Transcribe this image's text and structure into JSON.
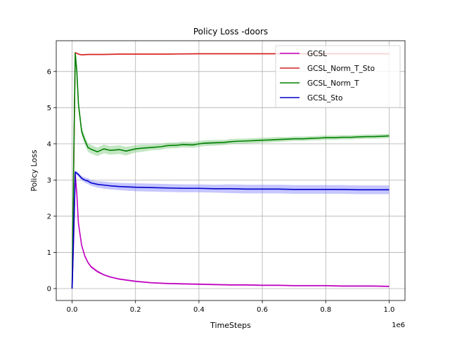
{
  "chart_data": {
    "type": "line",
    "title": "Policy Loss -doors",
    "xlabel": "TimeSteps",
    "ylabel": "Policy Loss",
    "x_offset_label": "1e6",
    "xlim": [
      -0.05,
      1.05
    ],
    "ylim": [
      -0.33,
      6.85
    ],
    "x_ticks": [
      0,
      0.2,
      0.4,
      0.6,
      0.8,
      1.0
    ],
    "x_tick_labels": [
      "0.0",
      "0.2",
      "0.4",
      "0.6",
      "0.8",
      "1.0"
    ],
    "y_ticks": [
      0,
      1,
      2,
      3,
      4,
      5,
      6
    ],
    "y_tick_labels": [
      "0",
      "1",
      "2",
      "3",
      "4",
      "5",
      "6"
    ],
    "grid": true,
    "legend_position": "top-right",
    "series": [
      {
        "name": "GCSL",
        "color": "#bf00bf",
        "band_color": "#bf00bf",
        "x": [
          0,
          0.005,
          0.01,
          0.015,
          0.02,
          0.03,
          0.04,
          0.05,
          0.06,
          0.08,
          0.1,
          0.12,
          0.15,
          0.2,
          0.25,
          0.3,
          0.35,
          0.4,
          0.45,
          0.5,
          0.55,
          0.6,
          0.65,
          0.7,
          0.75,
          0.8,
          0.85,
          0.9,
          0.95,
          1.0
        ],
        "y": [
          0.0,
          1.4,
          3.15,
          2.6,
          1.8,
          1.2,
          0.9,
          0.72,
          0.6,
          0.47,
          0.38,
          0.32,
          0.26,
          0.2,
          0.16,
          0.14,
          0.13,
          0.12,
          0.11,
          0.1,
          0.1,
          0.09,
          0.09,
          0.08,
          0.08,
          0.08,
          0.07,
          0.07,
          0.07,
          0.06
        ],
        "band": [
          0.0,
          0.05,
          0.08,
          0.08,
          0.06,
          0.05,
          0.04,
          0.03,
          0.03,
          0.03,
          0.02,
          0.02,
          0.02,
          0.02,
          0.02,
          0.02,
          0.02,
          0.02,
          0.02,
          0.02,
          0.02,
          0.02,
          0.02,
          0.02,
          0.02,
          0.02,
          0.02,
          0.02,
          0.02,
          0.02
        ]
      },
      {
        "name": "GCSL_Norm_T_Sto",
        "color": "#d62020",
        "band_color": "#ff9999",
        "x": [
          0,
          0.005,
          0.01,
          0.02,
          0.03,
          0.05,
          0.1,
          0.15,
          0.2,
          0.3,
          0.4,
          0.5,
          0.6,
          0.7,
          0.8,
          0.9,
          1.0
        ],
        "y": [
          0.0,
          3.3,
          6.52,
          6.48,
          6.46,
          6.47,
          6.47,
          6.48,
          6.48,
          6.48,
          6.49,
          6.49,
          6.49,
          6.49,
          6.49,
          6.49,
          6.49
        ],
        "band": [
          0.0,
          0.02,
          0.02,
          0.02,
          0.02,
          0.02,
          0.02,
          0.02,
          0.02,
          0.02,
          0.02,
          0.02,
          0.02,
          0.02,
          0.02,
          0.02,
          0.02
        ]
      },
      {
        "name": "GCSL_Norm_T",
        "color": "#008000",
        "band_color": "#78c878",
        "x": [
          0,
          0.005,
          0.01,
          0.015,
          0.02,
          0.03,
          0.04,
          0.05,
          0.06,
          0.08,
          0.1,
          0.12,
          0.15,
          0.17,
          0.2,
          0.22,
          0.25,
          0.28,
          0.3,
          0.33,
          0.35,
          0.38,
          0.4,
          0.42,
          0.45,
          0.48,
          0.5,
          0.52,
          0.55,
          0.58,
          0.6,
          0.63,
          0.65,
          0.68,
          0.7,
          0.73,
          0.75,
          0.78,
          0.8,
          0.83,
          0.85,
          0.88,
          0.9,
          0.93,
          0.95,
          0.98,
          1.0
        ],
        "y": [
          0.0,
          3.5,
          6.5,
          6.0,
          5.1,
          4.35,
          4.1,
          3.9,
          3.85,
          3.78,
          3.86,
          3.82,
          3.84,
          3.8,
          3.86,
          3.88,
          3.9,
          3.92,
          3.95,
          3.96,
          3.98,
          3.97,
          4.0,
          4.02,
          4.03,
          4.04,
          4.06,
          4.07,
          4.08,
          4.09,
          4.1,
          4.11,
          4.12,
          4.13,
          4.14,
          4.14,
          4.15,
          4.16,
          4.17,
          4.17,
          4.18,
          4.18,
          4.19,
          4.2,
          4.2,
          4.21,
          4.22
        ],
        "band": [
          0.0,
          0.1,
          0.1,
          0.15,
          0.15,
          0.12,
          0.12,
          0.12,
          0.12,
          0.12,
          0.12,
          0.12,
          0.12,
          0.12,
          0.1,
          0.1,
          0.08,
          0.08,
          0.08,
          0.08,
          0.08,
          0.08,
          0.08,
          0.08,
          0.08,
          0.07,
          0.07,
          0.07,
          0.07,
          0.07,
          0.07,
          0.07,
          0.07,
          0.06,
          0.06,
          0.06,
          0.06,
          0.06,
          0.06,
          0.06,
          0.06,
          0.06,
          0.06,
          0.06,
          0.06,
          0.06,
          0.06
        ]
      },
      {
        "name": "GCSL_Sto",
        "color": "#0000cc",
        "band_color": "#8080ff",
        "x": [
          0,
          0.005,
          0.01,
          0.02,
          0.03,
          0.04,
          0.05,
          0.06,
          0.08,
          0.1,
          0.12,
          0.15,
          0.2,
          0.25,
          0.3,
          0.35,
          0.4,
          0.45,
          0.5,
          0.55,
          0.6,
          0.65,
          0.7,
          0.75,
          0.8,
          0.85,
          0.9,
          0.95,
          1.0
        ],
        "y": [
          0.0,
          1.6,
          3.22,
          3.15,
          3.05,
          3.0,
          2.97,
          2.92,
          2.88,
          2.86,
          2.84,
          2.82,
          2.8,
          2.79,
          2.78,
          2.77,
          2.77,
          2.76,
          2.76,
          2.75,
          2.75,
          2.75,
          2.74,
          2.74,
          2.74,
          2.74,
          2.73,
          2.73,
          2.73
        ],
        "band": [
          0.0,
          0.05,
          0.05,
          0.06,
          0.06,
          0.07,
          0.08,
          0.08,
          0.09,
          0.1,
          0.1,
          0.1,
          0.11,
          0.11,
          0.11,
          0.11,
          0.11,
          0.11,
          0.12,
          0.12,
          0.12,
          0.12,
          0.12,
          0.12,
          0.12,
          0.12,
          0.12,
          0.12,
          0.12
        ]
      }
    ]
  }
}
